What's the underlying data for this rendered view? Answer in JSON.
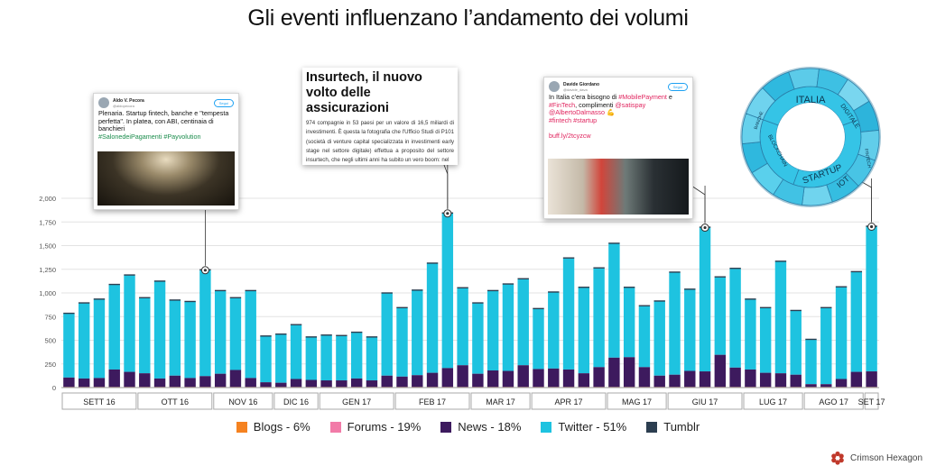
{
  "page": {
    "title": "Gli eventi influenzano l’andamento dei volumi"
  },
  "chart_data": {
    "type": "bar",
    "stacked": true,
    "ylim": [
      0,
      2000
    ],
    "yticks": [
      0,
      250,
      500,
      750,
      1000,
      1250,
      1500,
      1750,
      2000
    ],
    "grid": true,
    "legend_position": "bottom",
    "series": [
      {
        "name": "Blogs - 6%",
        "color": "#f58220",
        "values": [
          8,
          8,
          8,
          8,
          8,
          8,
          8,
          8,
          8,
          8,
          8,
          8,
          8,
          8,
          8,
          8,
          8,
          8,
          8,
          8,
          8,
          8,
          8,
          8,
          8,
          8,
          8,
          8,
          8,
          8,
          8,
          8,
          8,
          8,
          8,
          8,
          8,
          8,
          8,
          8,
          8,
          8,
          8,
          8,
          8,
          8,
          8,
          8,
          8,
          8,
          8,
          8,
          8,
          8,
          8,
          8,
          8,
          8,
          8,
          8,
          8,
          8,
          8,
          8,
          8,
          8,
          8,
          8,
          8,
          8,
          8,
          8,
          8,
          8,
          8,
          8,
          8,
          8,
          8,
          8,
          8,
          8,
          8,
          8,
          8,
          8,
          8,
          8,
          8,
          8,
          8,
          8,
          8,
          8,
          8,
          8,
          8,
          8,
          8,
          8,
          8,
          8,
          8,
          8,
          8,
          8,
          8,
          8,
          8,
          8,
          8,
          8,
          8,
          8,
          8,
          8,
          8,
          8,
          8,
          8,
          8,
          8,
          8,
          8,
          8,
          8,
          8,
          8,
          8,
          8,
          8,
          8,
          8,
          8,
          8,
          8,
          8,
          8,
          8,
          8
        ]
      },
      {
        "name": "Forums - 19%",
        "color": "#f27ba8",
        "values": []
      },
      {
        "name": "News - 18%",
        "color": "#3d1a5e",
        "values": []
      },
      {
        "name": "Twitter - 51%",
        "color": "#1ec3e0",
        "values": []
      },
      {
        "name": "Tumblr",
        "color": "#2c3e50",
        "values": []
      }
    ],
    "totals": [
      780,
      890,
      930,
      1085,
      1185,
      945,
      1120,
      920,
      905,
      1240,
      1020,
      945,
      1020,
      540,
      560,
      660,
      530,
      550,
      545,
      580,
      530,
      995,
      840,
      1025,
      1310,
      1840,
      1050,
      890,
      1020,
      1090,
      1145,
      830,
      1005,
      1365,
      1055,
      1260,
      1520,
      1055,
      860,
      910,
      1215,
      1035,
      1690,
      1165,
      1255,
      930,
      840,
      1330,
      810,
      505,
      840,
      1060,
      1220,
      1700
    ],
    "news": [
      100,
      90,
      95,
      185,
      160,
      145,
      90,
      120,
      95,
      115,
      140,
      180,
      95,
      50,
      45,
      85,
      75,
      70,
      70,
      90,
      70,
      120,
      110,
      125,
      150,
      200,
      230,
      140,
      175,
      170,
      230,
      190,
      195,
      185,
      145,
      210,
      310,
      315,
      210,
      120,
      130,
      170,
      165,
      340,
      205,
      185,
      150,
      145,
      130,
      30,
      30,
      85,
      160,
      165
    ],
    "pending_fix": true,
    "months": [
      "SETT 16",
      "OTT 16",
      "NOV 16",
      "DIC 16",
      "GEN 17",
      "FEB 17",
      "MAR 17",
      "APR 17",
      "MAG 17",
      "GIU 17",
      "LUG 17",
      "AGO 17",
      "SET 17"
    ],
    "month_bar_counts": [
      5,
      5,
      4,
      3,
      5,
      5,
      4,
      5,
      4,
      5,
      4,
      4,
      1
    ]
  },
  "events": {
    "tweet1": {
      "author": "Aldo V. Pecora",
      "handle": "@aldopecora",
      "follow": "Segui",
      "text": "Plenaria. Startup fintech, banche e \"tempesta perfetta\". In platea, con ABI, centinaia di banchieri",
      "tags": "#SalonedeiPagamenti #Payvolution"
    },
    "article": {
      "headline": "Insurtech, il nuovo volto delle assicurazioni",
      "body": "974 compagnie in 53 paesi per un valore di 16,5 miliardi di investimenti. È questa la fotografia che l'Ufficio Studi di P101 (società di venture capital specializzata in investimenti early stage nel settore digitale) effettua a proposito del settore insurtech, che negli ultimi anni ha subito un vero boom: nel"
    },
    "tweet2": {
      "author": "Davide Giordano",
      "handle": "@davide_dava",
      "follow": "Segui",
      "text1": "In Italia c'era bisogno di ",
      "tag1": "#MobilePayment",
      "text2": " e ",
      "tag2": "#FinTech",
      "text3": ", complimenti ",
      "tag3": "@satispay",
      "tag4": "@AlbertoDalmasso",
      "tag5": "#fintech #startup",
      "link": "buff.ly/2tcyzcw"
    },
    "wheel": {
      "inner": [
        "ITALIA",
        "STARTUP",
        "BLOCKCHAIN"
      ],
      "outer": [
        "DIGITALE",
        "IOT",
        "BANCHE",
        "FINTECH"
      ]
    }
  },
  "brand": {
    "name": "Crimson Hexagon"
  }
}
